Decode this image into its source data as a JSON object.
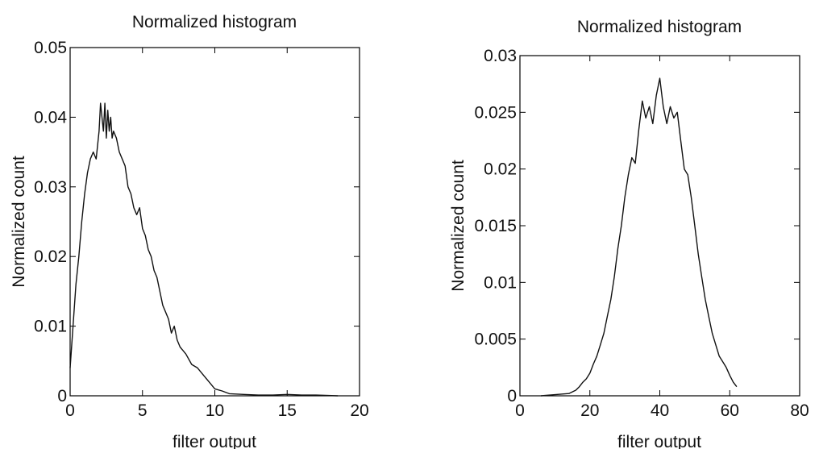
{
  "chart_data": [
    {
      "type": "line",
      "title": "Normalized histogram",
      "xlabel": "filter output",
      "ylabel": "Normalized count",
      "xlim": [
        0,
        20
      ],
      "ylim": [
        0,
        0.05
      ],
      "xticks": [
        0,
        5,
        10,
        15,
        20
      ],
      "xtick_labels": [
        "0",
        "5",
        "10",
        "15",
        "20"
      ],
      "yticks": [
        0,
        0.01,
        0.02,
        0.03,
        0.04,
        0.05
      ],
      "ytick_labels": [
        "0",
        "0.01",
        "0.02",
        "0.03",
        "0.04",
        "0.05"
      ],
      "grid": false,
      "series": [
        {
          "x": [
            0,
            0.2,
            0.4,
            0.6,
            0.8,
            1.0,
            1.2,
            1.4,
            1.6,
            1.8,
            2.0,
            2.1,
            2.2,
            2.3,
            2.4,
            2.5,
            2.6,
            2.7,
            2.8,
            2.9,
            3.0,
            3.2,
            3.4,
            3.6,
            3.8,
            4.0,
            4.2,
            4.4,
            4.6,
            4.8,
            5.0,
            5.2,
            5.4,
            5.6,
            5.8,
            6.0,
            6.2,
            6.4,
            6.6,
            6.8,
            7.0,
            7.2,
            7.4,
            7.6,
            7.8,
            8.0,
            8.4,
            8.8,
            9.2,
            9.6,
            10.0,
            10.5,
            11.0,
            12.0,
            13.0,
            14.0,
            15.0,
            16.0,
            17.0,
            18.5
          ],
          "values": [
            0.004,
            0.01,
            0.016,
            0.02,
            0.025,
            0.029,
            0.032,
            0.034,
            0.035,
            0.034,
            0.038,
            0.042,
            0.04,
            0.038,
            0.042,
            0.037,
            0.041,
            0.038,
            0.04,
            0.037,
            0.038,
            0.037,
            0.035,
            0.034,
            0.033,
            0.03,
            0.029,
            0.027,
            0.026,
            0.027,
            0.024,
            0.023,
            0.021,
            0.02,
            0.018,
            0.017,
            0.015,
            0.013,
            0.012,
            0.011,
            0.009,
            0.01,
            0.008,
            0.007,
            0.0065,
            0.006,
            0.0045,
            0.004,
            0.003,
            0.002,
            0.001,
            0.0007,
            0.0003,
            0.0002,
            0.0001,
            0.0001,
            0.0002,
            0.0001,
            0.0001,
            0.0
          ]
        }
      ]
    },
    {
      "type": "line",
      "title": "Normalized histogram",
      "xlabel": "filter output",
      "ylabel": "Normalized count",
      "xlim": [
        0,
        80
      ],
      "ylim": [
        0,
        0.03
      ],
      "xticks": [
        0,
        20,
        40,
        60,
        80
      ],
      "xtick_labels": [
        "0",
        "20",
        "40",
        "60",
        "80"
      ],
      "yticks": [
        0,
        0.005,
        0.01,
        0.015,
        0.02,
        0.025,
        0.03
      ],
      "ytick_labels": [
        "0",
        "0.005",
        "0.01",
        "0.015",
        "0.02",
        "0.025",
        "0.03"
      ],
      "grid": false,
      "series": [
        {
          "x": [
            6,
            10,
            14,
            16,
            17,
            18,
            19,
            20,
            21,
            22,
            23,
            24,
            25,
            26,
            27,
            28,
            29,
            30,
            31,
            32,
            33,
            34,
            35,
            36,
            37,
            38,
            39,
            40,
            41,
            42,
            43,
            44,
            45,
            46,
            47,
            48,
            49,
            50,
            51,
            52,
            53,
            54,
            55,
            56,
            57,
            58,
            59,
            60,
            61,
            62
          ],
          "values": [
            0.0,
            0.0001,
            0.0002,
            0.0005,
            0.0008,
            0.0012,
            0.0015,
            0.002,
            0.0028,
            0.0035,
            0.0045,
            0.0055,
            0.007,
            0.0085,
            0.0105,
            0.013,
            0.015,
            0.0175,
            0.0195,
            0.021,
            0.0205,
            0.0235,
            0.026,
            0.0245,
            0.0255,
            0.024,
            0.0265,
            0.028,
            0.0255,
            0.024,
            0.0255,
            0.0245,
            0.025,
            0.0225,
            0.02,
            0.0195,
            0.0175,
            0.015,
            0.0125,
            0.0105,
            0.0085,
            0.007,
            0.0055,
            0.0045,
            0.0035,
            0.003,
            0.0025,
            0.0018,
            0.0012,
            0.0008
          ]
        }
      ]
    }
  ]
}
